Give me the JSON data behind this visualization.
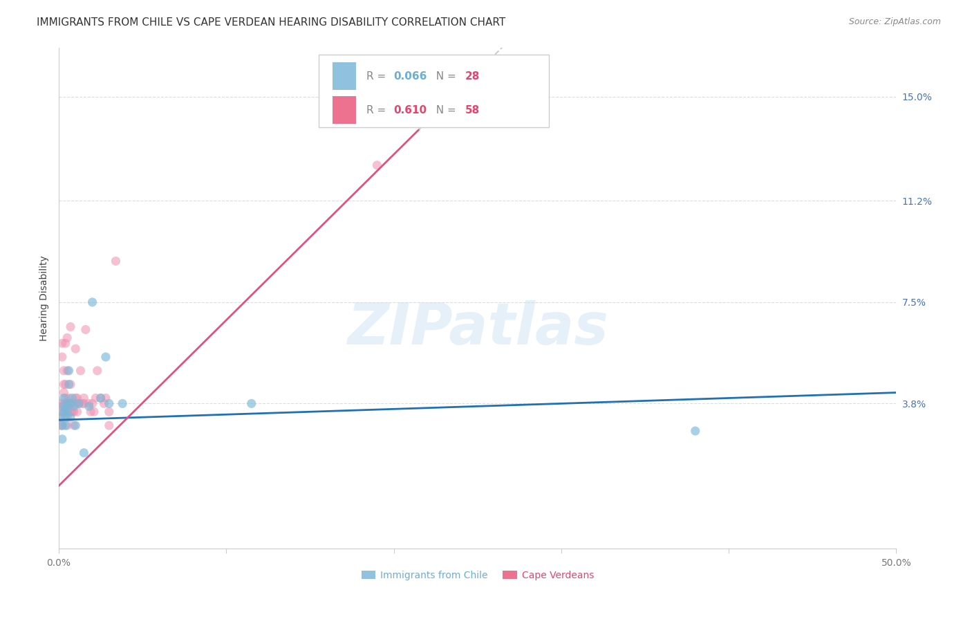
{
  "title": "IMMIGRANTS FROM CHILE VS CAPE VERDEAN HEARING DISABILITY CORRELATION CHART",
  "source": "Source: ZipAtlas.com",
  "ylabel": "Hearing Disability",
  "xlim": [
    0.0,
    0.5
  ],
  "ylim": [
    -0.015,
    0.168
  ],
  "xticks": [
    0.0,
    0.1,
    0.2,
    0.3,
    0.4,
    0.5
  ],
  "xticklabels": [
    "0.0%",
    "",
    "",
    "",
    "",
    "50.0%"
  ],
  "ytick_positions": [
    0.038,
    0.075,
    0.112,
    0.15
  ],
  "ytick_labels": [
    "3.8%",
    "7.5%",
    "11.2%",
    "15.0%"
  ],
  "scatter_chile": {
    "x": [
      0.001,
      0.002,
      0.002,
      0.003,
      0.003,
      0.003,
      0.004,
      0.004,
      0.004,
      0.005,
      0.005,
      0.006,
      0.006,
      0.007,
      0.007,
      0.008,
      0.009,
      0.01,
      0.012,
      0.015,
      0.018,
      0.02,
      0.025,
      0.028,
      0.03,
      0.038,
      0.115,
      0.38
    ],
    "y": [
      0.033,
      0.03,
      0.025,
      0.035,
      0.037,
      0.04,
      0.033,
      0.036,
      0.03,
      0.038,
      0.035,
      0.05,
      0.045,
      0.038,
      0.033,
      0.04,
      0.037,
      0.03,
      0.038,
      0.02,
      0.037,
      0.075,
      0.04,
      0.055,
      0.038,
      0.038,
      0.038,
      0.028
    ],
    "color": "#7ab8d9",
    "alpha": 0.65,
    "size": 90
  },
  "scatter_cape": {
    "x": [
      0.001,
      0.001,
      0.001,
      0.002,
      0.002,
      0.002,
      0.002,
      0.002,
      0.003,
      0.003,
      0.003,
      0.003,
      0.003,
      0.004,
      0.004,
      0.004,
      0.004,
      0.004,
      0.005,
      0.005,
      0.005,
      0.005,
      0.005,
      0.006,
      0.006,
      0.006,
      0.007,
      0.007,
      0.007,
      0.007,
      0.008,
      0.008,
      0.009,
      0.009,
      0.01,
      0.01,
      0.01,
      0.011,
      0.011,
      0.012,
      0.013,
      0.014,
      0.015,
      0.015,
      0.016,
      0.018,
      0.019,
      0.02,
      0.021,
      0.022,
      0.023,
      0.025,
      0.027,
      0.028,
      0.03,
      0.03,
      0.034,
      0.19
    ],
    "y": [
      0.03,
      0.035,
      0.038,
      0.03,
      0.033,
      0.037,
      0.055,
      0.06,
      0.035,
      0.038,
      0.042,
      0.045,
      0.05,
      0.035,
      0.038,
      0.04,
      0.045,
      0.06,
      0.03,
      0.033,
      0.038,
      0.05,
      0.062,
      0.035,
      0.038,
      0.04,
      0.035,
      0.038,
      0.045,
      0.066,
      0.035,
      0.038,
      0.03,
      0.035,
      0.038,
      0.04,
      0.058,
      0.035,
      0.04,
      0.038,
      0.05,
      0.038,
      0.038,
      0.04,
      0.065,
      0.038,
      0.035,
      0.038,
      0.035,
      0.04,
      0.05,
      0.04,
      0.038,
      0.04,
      0.03,
      0.035,
      0.09,
      0.125
    ],
    "color": "#f090b0",
    "alpha": 0.55,
    "size": 90
  },
  "trend_chile": {
    "x_start": 0.0,
    "x_end": 0.5,
    "y_start": 0.032,
    "y_end": 0.042,
    "color": "#2070b4",
    "linewidth": 2.0
  },
  "trend_cape_solid": {
    "x_start": 0.0,
    "x_end": 0.215,
    "y_start": 0.008,
    "y_end": 0.138,
    "color": "#e05080",
    "linewidth": 2.0
  },
  "trend_cape_dash": {
    "x_start": 0.215,
    "x_end": 0.5,
    "y_start": 0.138,
    "y_end": 0.31,
    "color": "#cccccc",
    "linewidth": 1.5,
    "linestyle": "--"
  },
  "watermark_text": "ZIPatlas",
  "watermark_color": "#c8dff0",
  "watermark_alpha": 0.45,
  "background_color": "#ffffff",
  "grid_color": "#dddddd",
  "title_fontsize": 11,
  "axis_label_fontsize": 10,
  "tick_fontsize": 10,
  "source_fontsize": 9,
  "legend_r1_val": "0.066",
  "legend_r1_n": "28",
  "legend_r1_color": "#6baed6",
  "legend_r2_val": "0.610",
  "legend_r2_n": "58",
  "legend_r2_color": "#e8436a",
  "bottom_legend_chile": "Immigrants from Chile",
  "bottom_legend_cape": "Cape Verdeans"
}
